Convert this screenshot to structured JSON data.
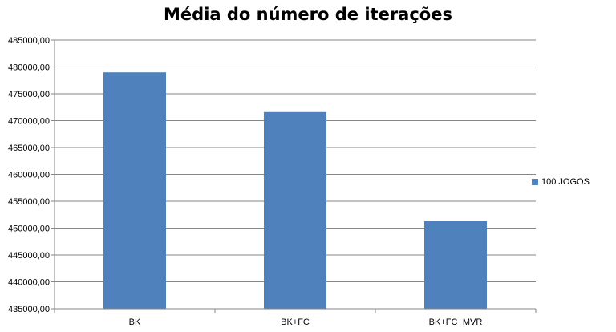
{
  "chart_data": {
    "type": "bar",
    "title": "Média do número de iterações",
    "xlabel": "",
    "ylabel": "",
    "categories": [
      "BK",
      "BK+FC",
      "BK+FC+MVR"
    ],
    "series": [
      {
        "name": "100 JOGOS",
        "values": [
          479000,
          471600,
          451300
        ]
      }
    ],
    "ylim": [
      435000,
      485000
    ],
    "yticks": [
      435000,
      440000,
      445000,
      450000,
      455000,
      460000,
      465000,
      470000,
      475000,
      480000,
      485000
    ],
    "ytick_labels": [
      "435000,00",
      "440000,00",
      "445000,00",
      "450000,00",
      "455000,00",
      "460000,00",
      "465000,00",
      "470000,00",
      "475000,00",
      "480000,00",
      "485000,00"
    ],
    "grid": true,
    "legend_position": "right",
    "bar_color": "#4F81BD"
  }
}
